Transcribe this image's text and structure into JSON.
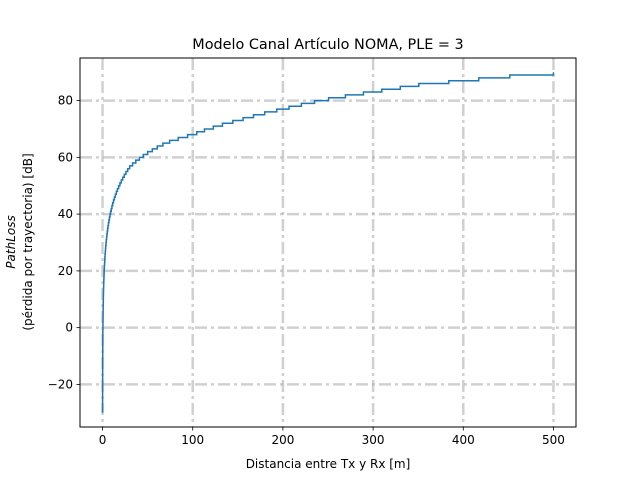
{
  "chart_data": {
    "type": "line",
    "title": "Modelo Canal Artículo NOMA, PLE = 3",
    "xlabel": "Distancia entre Tx y Rx [m]",
    "ylabel_line1": "PathLoss",
    "ylabel_line2": "(pérdida por trayectoria) [dB]",
    "xlim": [
      -25,
      525
    ],
    "ylim": [
      -35,
      95
    ],
    "xticks": [
      0,
      100,
      200,
      300,
      400,
      500
    ],
    "yticks": [
      -20,
      0,
      20,
      40,
      60,
      80
    ],
    "xtick_labels": [
      "0",
      "100",
      "200",
      "300",
      "400",
      "500"
    ],
    "ytick_labels": [
      "−20",
      "0",
      "20",
      "40",
      "60",
      "80"
    ],
    "grid": true,
    "grid_style": "dash-dot",
    "series": [
      {
        "color": "#1f77b4",
        "model": "staircase",
        "x": [
          0.04,
          0.25,
          0.5,
          1,
          2,
          5,
          10,
          20,
          30,
          50,
          70,
          100,
          150,
          200,
          250,
          300,
          350,
          400,
          450,
          500
        ],
        "y": [
          -30,
          -6,
          3,
          12,
          21,
          33,
          42,
          51,
          56.5,
          61.5,
          65,
          68,
          73,
          77,
          80.5,
          83,
          85.5,
          87,
          88.5,
          89.5
        ]
      }
    ]
  }
}
